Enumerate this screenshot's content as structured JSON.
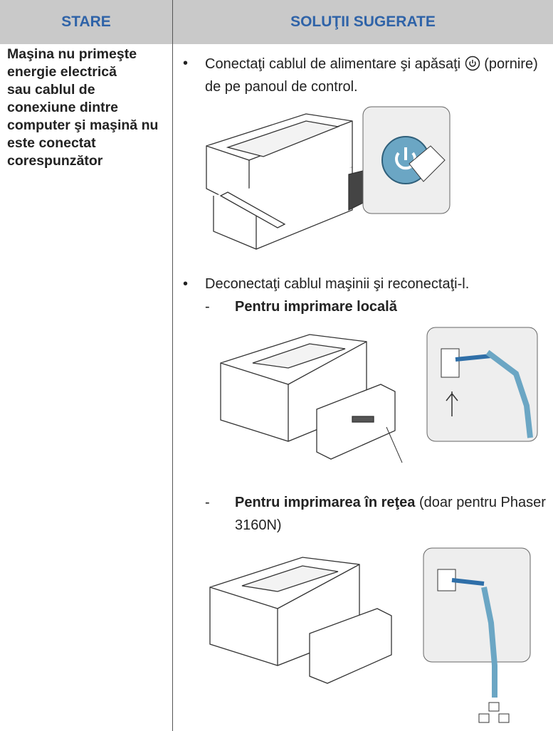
{
  "header": {
    "columns": [
      "STARE",
      "SOLUŢII SUGERATE"
    ]
  },
  "row": {
    "status": [
      "Maşina nu primeşte energie electrică",
      "sau cablul de conexiune dintre computer şi maşină nu este conectat corespunzător"
    ],
    "solutions": [
      {
        "text_before": "Conectaţi cablul de alimentare şi apăsaţi",
        "text_after": "(pornire) de pe panoul de control."
      },
      {
        "text": "Deconectaţi cablul maşinii şi reconectaţi-l.",
        "subitems": [
          {
            "label": "Pentru imprimare locală"
          },
          {
            "label": "Pentru imprimarea în reţea",
            "note": "(doar pentru Phaser 3160N)"
          }
        ]
      }
    ]
  }
}
